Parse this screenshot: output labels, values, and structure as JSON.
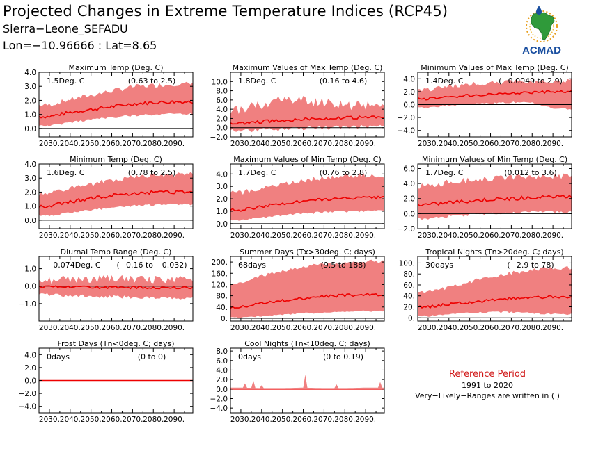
{
  "header": {
    "title": "Projected Changes in Extreme Temperature Indices (RCP45)",
    "location": "Sierra−Leone_SEFADU",
    "coords": "Lon=−10.96666 : Lat=8.65"
  },
  "logo": {
    "text": "ACMAD",
    "accent": "#1a4fa0"
  },
  "reference": {
    "title": "Reference Period",
    "years": "1991 to 2020",
    "note": "Very−Likely−Ranges are written in ( )",
    "title_color": "#d01818"
  },
  "colors": {
    "band": "#f08080",
    "line": "#ee0000",
    "zero": "#000000"
  },
  "chart_data": [
    {
      "type": "area",
      "title": "Maximum Temp (Deg. C)",
      "value_label": "1.5Deg. C",
      "range_label": "(0.63 to 2.5)",
      "x": [
        2030,
        2040,
        2050,
        2060,
        2070,
        2080,
        2090
      ],
      "x_tick_labels": [
        "2030.",
        "2040.",
        "2050.",
        "2060.",
        "2070.",
        "2080.",
        "2090."
      ],
      "xlim": [
        2025,
        2099
      ],
      "ylim": [
        -0.6,
        4.0
      ],
      "y_ticks": [
        0,
        1,
        2,
        3,
        4
      ],
      "y_tick_labels": [
        "0.0",
        "1.0",
        "2.0",
        "3.0",
        "4.0"
      ],
      "series": {
        "median": [
          0.85,
          1.15,
          1.35,
          1.55,
          1.75,
          1.85,
          1.9
        ],
        "lower": [
          0.25,
          0.5,
          0.7,
          0.85,
          1.0,
          1.05,
          1.1
        ],
        "upper": [
          1.6,
          2.0,
          2.3,
          2.6,
          2.9,
          3.0,
          3.1
        ]
      },
      "noise": [
        0.12,
        0.35
      ]
    },
    {
      "type": "area",
      "title": "Maximum Values of Max Temp (Deg. C)",
      "value_label": "1.8Deg. C",
      "range_label": "(0.16 to 4.6)",
      "x": [
        2030,
        2040,
        2050,
        2060,
        2070,
        2080,
        2090
      ],
      "x_tick_labels": [
        "2030.",
        "2040.",
        "2050.",
        "2060.",
        "2070.",
        "2080.",
        "2090."
      ],
      "xlim": [
        2025,
        2099
      ],
      "ylim": [
        -2.0,
        12.0
      ],
      "y_ticks": [
        -2,
        0,
        2,
        4,
        6,
        8,
        10
      ],
      "y_tick_labels": [
        "−2.0",
        "0.0",
        "2.0",
        "4.0",
        "6.0",
        "8.0",
        "10.0"
      ],
      "series": {
        "median": [
          0.9,
          1.3,
          1.6,
          1.9,
          2.0,
          2.1,
          2.2
        ],
        "lower": [
          -0.2,
          0.0,
          0.2,
          0.3,
          0.4,
          0.5,
          0.6
        ],
        "upper": [
          3.5,
          4.5,
          5.5,
          5.5,
          5.0,
          4.5,
          4.5
        ]
      },
      "noise": [
        0.35,
        2.2
      ]
    },
    {
      "type": "area",
      "title": "Minimum Values of Max Temp (Deg. C)",
      "value_label": "1.4Deg. C",
      "range_label": "(−0.0049 to 2.9)",
      "x": [
        2030,
        2040,
        2050,
        2060,
        2070,
        2080,
        2090
      ],
      "x_tick_labels": [
        "2030.",
        "2040.",
        "2050.",
        "2060.",
        "2070.",
        "2080.",
        "2090."
      ],
      "xlim": [
        2025,
        2099
      ],
      "ylim": [
        -5.0,
        5.0
      ],
      "y_ticks": [
        -4,
        -2,
        0,
        2,
        4
      ],
      "y_tick_labels": [
        "−4.0",
        "−2.0",
        "0.0",
        "2.0",
        "4.0"
      ],
      "series": {
        "median": [
          0.9,
          1.2,
          1.4,
          1.6,
          1.8,
          1.9,
          2.0
        ],
        "lower": [
          -0.3,
          0.0,
          0.2,
          0.3,
          0.5,
          0.4,
          -0.5
        ],
        "upper": [
          2.2,
          2.7,
          3.0,
          3.2,
          3.4,
          3.5,
          3.5
        ]
      },
      "noise": [
        0.2,
        0.7
      ]
    },
    {
      "type": "area",
      "title": "Minimum Temp (Deg. C)",
      "value_label": "1.6Deg. C",
      "range_label": "(0.78 to 2.5)",
      "x": [
        2030,
        2040,
        2050,
        2060,
        2070,
        2080,
        2090
      ],
      "x_tick_labels": [
        "2030.",
        "2040.",
        "2050.",
        "2060.",
        "2070.",
        "2080.",
        "2090."
      ],
      "xlim": [
        2025,
        2099
      ],
      "ylim": [
        -0.6,
        4.0
      ],
      "y_ticks": [
        0,
        1,
        2,
        3,
        4
      ],
      "y_tick_labels": [
        "0.0",
        "1.0",
        "2.0",
        "3.0",
        "4.0"
      ],
      "series": {
        "median": [
          1.0,
          1.3,
          1.55,
          1.75,
          1.9,
          2.0,
          2.0
        ],
        "lower": [
          0.4,
          0.6,
          0.8,
          0.95,
          1.1,
          1.15,
          1.2
        ],
        "upper": [
          1.8,
          2.2,
          2.5,
          2.8,
          3.0,
          3.1,
          3.2
        ]
      },
      "noise": [
        0.12,
        0.35
      ]
    },
    {
      "type": "area",
      "title": "Maximum Values of Min Temp (Deg. C)",
      "value_label": "1.7Deg. C",
      "range_label": "(0.76 to 2.8)",
      "x": [
        2030,
        2040,
        2050,
        2060,
        2070,
        2080,
        2090
      ],
      "x_tick_labels": [
        "2030.",
        "2040.",
        "2050.",
        "2060.",
        "2070.",
        "2080.",
        "2090."
      ],
      "xlim": [
        2025,
        2099
      ],
      "ylim": [
        -0.4,
        4.8
      ],
      "y_ticks": [
        0,
        1,
        2,
        3,
        4
      ],
      "y_tick_labels": [
        "0.0",
        "1.0",
        "2.0",
        "3.0",
        "4.0"
      ],
      "series": {
        "median": [
          1.1,
          1.4,
          1.6,
          1.8,
          1.95,
          2.05,
          2.1
        ],
        "lower": [
          0.4,
          0.55,
          0.75,
          0.9,
          1.0,
          1.05,
          1.1
        ],
        "upper": [
          2.4,
          2.8,
          3.1,
          3.4,
          3.6,
          3.8,
          3.8
        ]
      },
      "noise": [
        0.12,
        0.4
      ]
    },
    {
      "type": "area",
      "title": "Minimum Values of Min Temp (Deg. C)",
      "value_label": "1.7Deg. C",
      "range_label": "(0.012 to 3.6)",
      "x": [
        2030,
        2040,
        2050,
        2060,
        2070,
        2080,
        2090
      ],
      "x_tick_labels": [
        "2030.",
        "2040.",
        "2050.",
        "2060.",
        "2070.",
        "2080.",
        "2090."
      ],
      "xlim": [
        2025,
        2099
      ],
      "ylim": [
        -2.0,
        6.6
      ],
      "y_ticks": [
        -2,
        0,
        2,
        4,
        6
      ],
      "y_tick_labels": [
        "−2.0",
        "0.0",
        "2.0",
        "4.0",
        "6.0"
      ],
      "series": {
        "median": [
          1.2,
          1.5,
          1.7,
          1.9,
          2.0,
          2.1,
          2.2
        ],
        "lower": [
          -0.5,
          -0.2,
          0.0,
          0.2,
          0.3,
          0.4,
          0.4
        ],
        "upper": [
          3.5,
          4.0,
          4.3,
          4.5,
          4.6,
          4.8,
          4.8
        ]
      },
      "noise": [
        0.25,
        0.8
      ]
    },
    {
      "type": "area",
      "title": "Diurnal Temp Range (Deg. C)",
      "value_label": "−0.074Deg. C",
      "range_label": "(−0.16 to −0.032)",
      "x": [
        2030,
        2040,
        2050,
        2060,
        2070,
        2080,
        2090
      ],
      "x_tick_labels": [
        "2030.",
        "2040.",
        "2050.",
        "2060.",
        "2070.",
        "2080.",
        "2090."
      ],
      "xlim": [
        2025,
        2099
      ],
      "ylim": [
        -2.0,
        1.7
      ],
      "y_ticks": [
        -1,
        0,
        1
      ],
      "y_tick_labels": [
        "−1.0",
        "0.0",
        "1.0"
      ],
      "series": {
        "median": [
          -0.05,
          -0.06,
          -0.07,
          -0.07,
          -0.08,
          -0.08,
          -0.09
        ],
        "lower": [
          -0.4,
          -0.45,
          -0.5,
          -0.5,
          -0.55,
          -0.55,
          -0.6
        ],
        "upper": [
          0.25,
          0.3,
          0.3,
          0.35,
          0.3,
          0.3,
          0.3
        ]
      },
      "noise": [
        0.07,
        0.45
      ]
    },
    {
      "type": "area",
      "title": "Summer Days (Tx>30deg. C; days)",
      "value_label": "68days",
      "range_label": "(9.5 to 188)",
      "x": [
        2030,
        2040,
        2050,
        2060,
        2070,
        2080,
        2090
      ],
      "x_tick_labels": [
        "2030.",
        "2040.",
        "2050.",
        "2060.",
        "2070.",
        "2080.",
        "2090."
      ],
      "xlim": [
        2025,
        2099
      ],
      "ylim": [
        -10,
        220
      ],
      "y_ticks": [
        0,
        40,
        80,
        120,
        160,
        200
      ],
      "y_tick_labels": [
        "0.",
        "40.",
        "80.",
        "120.",
        "160.",
        "200."
      ],
      "series": {
        "median": [
          40,
          55,
          62,
          70,
          78,
          82,
          84
        ],
        "lower": [
          5,
          10,
          15,
          20,
          22,
          25,
          28
        ],
        "upper": [
          120,
          150,
          165,
          180,
          190,
          195,
          200
        ]
      },
      "noise": [
        5,
        12
      ]
    },
    {
      "type": "area",
      "title": "Tropical Nights (Tn>20deg. C; days)",
      "value_label": "30days",
      "range_label": "(−2.9 to 78)",
      "x": [
        2030,
        2040,
        2050,
        2060,
        2070,
        2080,
        2090
      ],
      "x_tick_labels": [
        "2030.",
        "2040.",
        "2050.",
        "2060.",
        "2070.",
        "2080.",
        "2090."
      ],
      "xlim": [
        2025,
        2099
      ],
      "ylim": [
        -6,
        112
      ],
      "y_ticks": [
        0,
        20,
        40,
        60,
        80,
        100
      ],
      "y_tick_labels": [
        "0.",
        "20.",
        "40.",
        "60.",
        "80.",
        "100."
      ],
      "series": {
        "median": [
          20,
          25,
          28,
          32,
          35,
          37,
          38
        ],
        "lower": [
          5,
          8,
          10,
          12,
          12,
          10,
          8
        ],
        "upper": [
          45,
          55,
          65,
          72,
          80,
          85,
          90
        ]
      },
      "noise": [
        2.5,
        8
      ]
    },
    {
      "type": "area",
      "title": "Frost Days (Tn<0deg. C; days)",
      "value_label": "0days",
      "range_label": "(0 to 0)",
      "x": [
        2030,
        2040,
        2050,
        2060,
        2070,
        2080,
        2090
      ],
      "x_tick_labels": [
        "2030.",
        "2040.",
        "2050.",
        "2060.",
        "2070.",
        "2080.",
        "2090."
      ],
      "xlim": [
        2025,
        2099
      ],
      "ylim": [
        -5.0,
        5.0
      ],
      "y_ticks": [
        -4,
        -2,
        0,
        2,
        4
      ],
      "y_tick_labels": [
        "−4.0",
        "−2.0",
        "0.0",
        "2.0",
        "4.0"
      ],
      "series": {
        "median": [
          0,
          0,
          0,
          0,
          0,
          0,
          0
        ],
        "lower": [
          0,
          0,
          0,
          0,
          0,
          0,
          0
        ],
        "upper": [
          0,
          0,
          0,
          0,
          0,
          0,
          0
        ]
      },
      "noise": [
        0,
        0
      ]
    },
    {
      "type": "area",
      "title": "Cool Nights (Tn<10deg. C; days)",
      "value_label": "0days",
      "range_label": "(0 to 0.19)",
      "x": [
        2030,
        2040,
        2050,
        2060,
        2070,
        2080,
        2090
      ],
      "x_tick_labels": [
        "2030.",
        "2040.",
        "2050.",
        "2060.",
        "2070.",
        "2080.",
        "2090."
      ],
      "xlim": [
        2025,
        2099
      ],
      "ylim": [
        -5.0,
        8.6
      ],
      "y_ticks": [
        -4,
        -2,
        0,
        2,
        4,
        6,
        8
      ],
      "y_tick_labels": [
        "−4.0",
        "−2.0",
        "0.0",
        "2.0",
        "4.0",
        "6.0",
        "8.0"
      ],
      "series": {
        "median": [
          0,
          0,
          0,
          0,
          0,
          0,
          0
        ],
        "lower": [
          0,
          0,
          0,
          0,
          0,
          0,
          0
        ],
        "upper": [
          0.3,
          0.2,
          0.2,
          0.3,
          0.2,
          0.2,
          0.3
        ]
      },
      "noise": [
        0,
        0
      ],
      "spikes": [
        [
          2032,
          1.2
        ],
        [
          2036,
          1.8
        ],
        [
          2040,
          0.8
        ],
        [
          2061,
          3.0
        ],
        [
          2076,
          1.0
        ],
        [
          2097,
          1.5
        ]
      ]
    }
  ]
}
